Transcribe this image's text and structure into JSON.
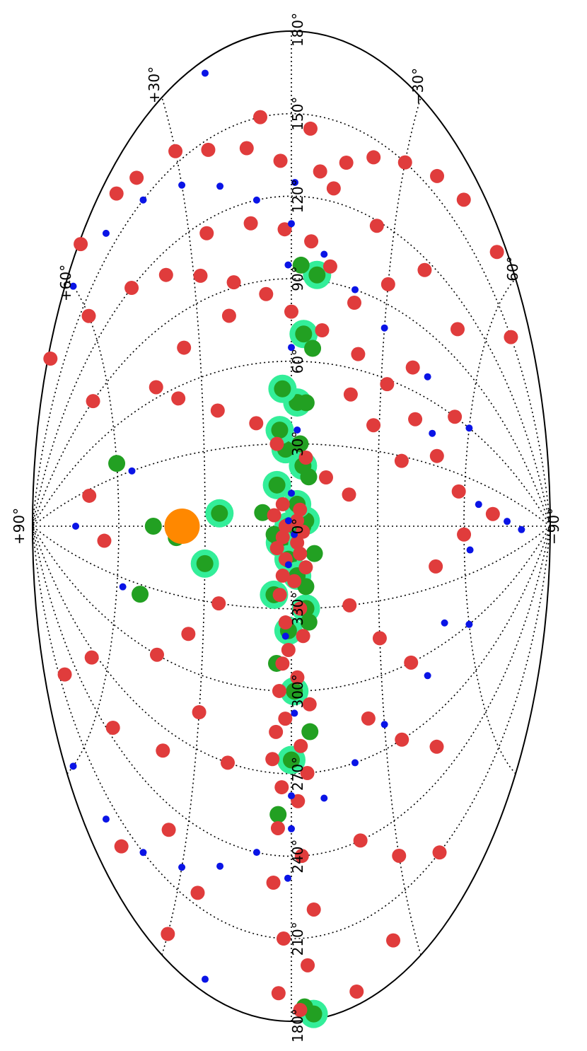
{
  "chart_data": {
    "type": "scatter",
    "projection": "Aitoff (galactic coordinates), figure rotated 90 degrees",
    "title": "",
    "xlabel": "",
    "ylabel": "",
    "xlim": [
      180,
      -180
    ],
    "ylim": [
      -90,
      90
    ],
    "grid": true,
    "longitude_tick_labels": [
      "180°",
      "150°",
      "120°",
      "90°",
      "60°",
      "30°",
      "0°",
      "330°",
      "300°",
      "270°",
      "240°",
      "210°",
      "180°"
    ],
    "latitude_tick_labels": [
      "+90°",
      "+60°",
      "+30°",
      "0°",
      "−30°",
      "60°",
      "−90°"
    ],
    "colors": {
      "red": "#e03c3c",
      "blue": "#0a14e6",
      "dark_green": "#22a022",
      "light_green": "#33ee99",
      "orange": "#ff8800",
      "grid": "#000000"
    },
    "series": [
      {
        "kind": "red-halo",
        "points": [
          [
            178,
            55
          ],
          [
            168,
            45
          ],
          [
            162,
            40
          ],
          [
            155,
            30
          ],
          [
            146,
            22
          ],
          [
            140,
            12
          ],
          [
            133,
            3
          ],
          [
            130,
            -8
          ],
          [
            136,
            -15
          ],
          [
            143,
            -22
          ],
          [
            150,
            -30
          ],
          [
            158,
            -38
          ],
          [
            164,
            -45
          ],
          [
            170,
            -55
          ],
          [
            175,
            70
          ],
          [
            140,
            60
          ],
          [
            120,
            48
          ],
          [
            110,
            38
          ],
          [
            100,
            28
          ],
          [
            92,
            18
          ],
          [
            85,
            8
          ],
          [
            78,
            0
          ],
          [
            72,
            -10
          ],
          [
            66,
            -22
          ],
          [
            58,
            -32
          ],
          [
            48,
            -42
          ],
          [
            35,
            -50
          ],
          [
            20,
            -58
          ],
          [
            150,
            8
          ],
          [
            145,
            -5
          ],
          [
            125,
            -12
          ],
          [
            118,
            -25
          ],
          [
            115,
            -40
          ],
          [
            105,
            -52
          ],
          [
            98,
            -30
          ],
          [
            85,
            -20
          ],
          [
            70,
            -40
          ],
          [
            60,
            -55
          ],
          [
            50,
            -20
          ],
          [
            40,
            -28
          ],
          [
            28,
            -38
          ],
          [
            115,
            25
          ],
          [
            112,
            12
          ],
          [
            108,
            2
          ],
          [
            104,
            -6
          ],
          [
            96,
            -12
          ],
          [
            80,
            20
          ],
          [
            75,
            35
          ],
          [
            65,
            45
          ],
          [
            55,
            38
          ],
          [
            45,
            25
          ],
          [
            38,
            12
          ],
          [
            30,
            5
          ],
          [
            25,
            -5
          ],
          [
            18,
            -12
          ],
          [
            12,
            -20
          ],
          [
            8,
            3
          ],
          [
            6,
            -3
          ],
          [
            4,
            6
          ],
          [
            2,
            -2
          ],
          [
            0,
            2
          ],
          [
            -2,
            -4
          ],
          [
            -4,
            3
          ],
          [
            -6,
            -2
          ],
          [
            -8,
            5
          ],
          [
            -10,
            -3
          ],
          [
            -12,
            2
          ],
          [
            -15,
            -5
          ],
          [
            -18,
            3
          ],
          [
            -20,
            -1
          ],
          [
            -25,
            4
          ],
          [
            -30,
            -3
          ],
          [
            -35,
            2
          ],
          [
            -40,
            -4
          ],
          [
            -45,
            1
          ],
          [
            -50,
            3
          ],
          [
            -55,
            -2
          ],
          [
            -60,
            4
          ],
          [
            -65,
            -6
          ],
          [
            -70,
            2
          ],
          [
            -75,
            5
          ],
          [
            -80,
            -3
          ],
          [
            -85,
            6
          ],
          [
            -90,
            -5
          ],
          [
            -95,
            3
          ],
          [
            -100,
            -2
          ],
          [
            -110,
            4
          ],
          [
            -120,
            -3
          ],
          [
            -130,
            5
          ],
          [
            -140,
            -6
          ],
          [
            -150,
            2
          ],
          [
            -160,
            -4
          ],
          [
            -170,
            3
          ],
          [
            -176,
            -2
          ],
          [
            -30,
            25
          ],
          [
            -45,
            35
          ],
          [
            -60,
            45
          ],
          [
            -75,
            30
          ],
          [
            -90,
            20
          ],
          [
            -100,
            40
          ],
          [
            -115,
            55
          ],
          [
            -130,
            35
          ],
          [
            -145,
            25
          ],
          [
            -160,
            45
          ],
          [
            -170,
            30
          ],
          [
            -30,
            -20
          ],
          [
            -45,
            -30
          ],
          [
            -60,
            -40
          ],
          [
            -75,
            -25
          ],
          [
            -90,
            -35
          ],
          [
            -105,
            -45
          ],
          [
            -120,
            -20
          ],
          [
            -135,
            -30
          ],
          [
            -150,
            -40
          ],
          [
            -165,
            -25
          ],
          [
            -175,
            -15
          ],
          [
            -10,
            65
          ],
          [
            -5,
            -60
          ],
          [
            10,
            -70
          ],
          [
            -20,
            -50
          ],
          [
            25,
            70
          ],
          [
            90,
            65
          ],
          [
            150,
            -65
          ],
          [
            -95,
            65
          ],
          [
            -140,
            70
          ]
        ]
      },
      {
        "kind": "blue-dot",
        "points": [
          [
            170,
            60
          ],
          [
            160,
            50
          ],
          [
            150,
            40
          ],
          [
            140,
            30
          ],
          [
            130,
            20
          ],
          [
            120,
            10
          ],
          [
            110,
            0
          ],
          [
            100,
            -10
          ],
          [
            90,
            -20
          ],
          [
            80,
            -30
          ],
          [
            70,
            -45
          ],
          [
            60,
            -60
          ],
          [
            -170,
            60
          ],
          [
            -160,
            50
          ],
          [
            -150,
            40
          ],
          [
            -140,
            30
          ],
          [
            -130,
            20
          ],
          [
            -120,
            10
          ],
          [
            -110,
            0
          ],
          [
            -100,
            -10
          ],
          [
            -90,
            -20
          ],
          [
            -80,
            -30
          ],
          [
            -70,
            -45
          ],
          [
            -60,
            -60
          ],
          [
            175,
            20
          ],
          [
            -175,
            20
          ],
          [
            0,
            75
          ],
          [
            5,
            -75
          ],
          [
            -5,
            -80
          ],
          [
            15,
            -65
          ],
          [
            -15,
            -62
          ],
          [
            30,
            55
          ],
          [
            -35,
            58
          ],
          [
            45,
            -48
          ],
          [
            -50,
            -52
          ],
          [
            2,
            1
          ],
          [
            -3,
            -1
          ],
          [
            12,
            0
          ],
          [
            -14,
            1
          ],
          [
            35,
            -2
          ],
          [
            -40,
            2
          ],
          [
            65,
            0
          ],
          [
            -68,
            -1
          ],
          [
            95,
            1
          ],
          [
            -98,
            0
          ],
          [
            125,
            -1
          ],
          [
            -128,
            1
          ]
        ]
      },
      {
        "kind": "dark-green-disc",
        "points": [
          [
            0,
            -4
          ],
          [
            -3,
            6
          ],
          [
            5,
            10
          ],
          [
            -10,
            -8
          ],
          [
            18,
            -6
          ],
          [
            -22,
            -5
          ],
          [
            30,
            -3
          ],
          [
            -35,
            -6
          ],
          [
            45,
            -5
          ],
          [
            -50,
            5
          ],
          [
            65,
            -7
          ],
          [
            -75,
            -6
          ],
          [
            95,
            -3
          ],
          [
            -105,
            4
          ],
          [
            -175,
            -3
          ],
          [
            -5,
            40
          ],
          [
            -35,
            52
          ],
          [
            0,
            48
          ],
          [
            38,
            60
          ]
        ]
      },
      {
        "kind": "light-green-halo",
        "points": [
          [
            0,
            1
          ],
          [
            2,
            -5
          ],
          [
            -6,
            4
          ],
          [
            8,
            -2
          ],
          [
            -12,
            1
          ],
          [
            15,
            5
          ],
          [
            -18,
            -2
          ],
          [
            22,
            -4
          ],
          [
            -25,
            6
          ],
          [
            28,
            2
          ],
          [
            -30,
            -5
          ],
          [
            35,
            4
          ],
          [
            -38,
            1
          ],
          [
            45,
            -2
          ],
          [
            50,
            3
          ],
          [
            -60,
            -1
          ],
          [
            70,
            -4
          ],
          [
            -85,
            0
          ],
          [
            92,
            -8
          ],
          [
            -178,
            -5
          ],
          [
            -15,
            30
          ],
          [
            5,
            25
          ]
        ]
      },
      {
        "kind": "orange-disc",
        "points": [
          [
            0,
            38
          ]
        ]
      }
    ]
  }
}
